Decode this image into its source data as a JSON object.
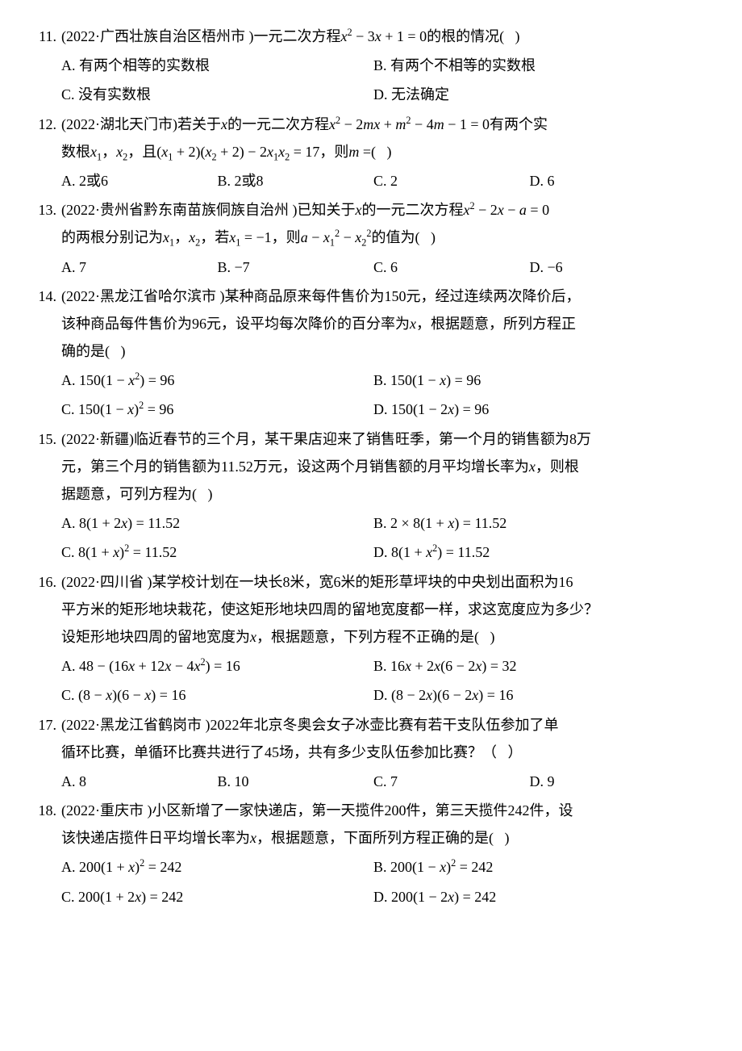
{
  "questions": [
    {
      "num": "11.",
      "stem_lines": [
        "(2022·广西壮族自治区梧州市 )一元二次方程{x}{sup2} − 3{x} + 1 = 0的根的情况(   )"
      ],
      "option_rows": [
        {
          "cols": 2,
          "items": [
            "A. 有两个相等的实数根",
            "B. 有两个不相等的实数根"
          ]
        },
        {
          "cols": 2,
          "items": [
            "C. 没有实数根",
            "D. 无法确定"
          ]
        }
      ]
    },
    {
      "num": "12.",
      "stem_lines": [
        "(2022·湖北天门市)若关于{x}的一元二次方程{x}{sup2} − 2{m}{x} + {m}{sup2} − 4{m} − 1 = 0有两个实",
        "数根{x}{sub1}，{x}{sub2}，且({x}{sub1} + 2)({x}{sub2} + 2) − 2{x}{sub1}{x}{sub2} = 17，则{m} =(   )"
      ],
      "option_rows": [
        {
          "cols": 4,
          "items": [
            "A. 2或6",
            "B. 2或8",
            "C. 2",
            "D. 6"
          ]
        }
      ]
    },
    {
      "num": "13.",
      "stem_lines": [
        "(2022·贵州省黔东南苗族侗族自治州 )已知关于{x}的一元二次方程{x}{sup2} − 2{x} − {a} = 0",
        "的两根分别记为{x}{sub1}，{x}{sub2}，若{x}{sub1} = −1，则{a} − {x}{sub1}{sup2} − {x}{sub2}{sup2}的值为(   )"
      ],
      "option_rows": [
        {
          "cols": 4,
          "items": [
            "A. 7",
            "B. −7",
            "C. 6",
            "D. −6"
          ]
        }
      ]
    },
    {
      "num": "14.",
      "stem_lines": [
        "(2022·黑龙江省哈尔滨市 )某种商品原来每件售价为150元，经过连续两次降价后，",
        "该种商品每件售价为96元，设平均每次降价的百分率为{x}，根据题意，所列方程正",
        "确的是(   )"
      ],
      "option_rows": [
        {
          "cols": 2,
          "items": [
            "A. 150(1 − {x}{sup2}) = 96",
            "B. 150(1 − {x}) = 96"
          ]
        },
        {
          "cols": 2,
          "items": [
            "C. 150(1 − {x}){sup2} = 96",
            "D. 150(1 − 2{x}) = 96"
          ]
        }
      ]
    },
    {
      "num": "15.",
      "stem_lines": [
        "(2022·新疆)临近春节的三个月，某干果店迎来了销售旺季，第一个月的销售额为8万",
        "元，第三个月的销售额为11.52万元，设这两个月销售额的月平均增长率为{x}，则根",
        "据题意，可列方程为(   )"
      ],
      "option_rows": [
        {
          "cols": 2,
          "items": [
            "A. 8(1 + 2{x}) = 11.52",
            "B. 2 × 8(1 + {x}) = 11.52"
          ]
        },
        {
          "cols": 2,
          "items": [
            "C. 8(1 + {x}){sup2} = 11.52",
            "D. 8(1 + {x}{sup2}) = 11.52"
          ]
        }
      ]
    },
    {
      "num": "16.",
      "stem_lines": [
        "(2022·四川省 )某学校计划在一块长8米，宽6米的矩形草坪块的中央划出面积为16",
        "平方米的矩形地块栽花，使这矩形地块四周的留地宽度都一样，求这宽度应为多少？",
        "设矩形地块四周的留地宽度为{x}，根据题意，下列方程不正确的是(   )"
      ],
      "option_rows": [
        {
          "cols": 2,
          "items": [
            "A. 48 − (16{x} + 12{x} − 4{x}{sup2}) = 16",
            "B. 16{x} + 2{x}(6 − 2{x}) = 32"
          ]
        },
        {
          "cols": 2,
          "items": [
            "C. (8 − {x})(6 − {x}) = 16",
            "D. (8 − 2{x})(6 − 2{x}) = 16"
          ]
        }
      ]
    },
    {
      "num": "17.",
      "stem_lines": [
        "(2022·黑龙江省鹤岗市 )2022年北京冬奥会女子冰壶比赛有若干支队伍参加了单",
        "循环比赛，单循环比赛共进行了45场，共有多少支队伍参加比赛？（   ）"
      ],
      "option_rows": [
        {
          "cols": 4,
          "items": [
            "A. 8",
            "B. 10",
            "C. 7",
            "D. 9"
          ]
        }
      ]
    },
    {
      "num": "18.",
      "stem_lines": [
        "(2022·重庆市 )小区新增了一家快递店，第一天揽件200件，第三天揽件242件，设",
        "该快递店揽件日平均增长率为{x}，根据题意，下面所列方程正确的是(   )"
      ],
      "option_rows": [
        {
          "cols": 2,
          "items": [
            "A. 200(1 + {x}){sup2} = 242",
            "B. 200(1 − {x}){sup2} = 242"
          ]
        },
        {
          "cols": 2,
          "items": [
            "C. 200(1 + 2{x}) = 242",
            "D. 200(1 − 2{x}) = 242"
          ]
        }
      ]
    }
  ]
}
